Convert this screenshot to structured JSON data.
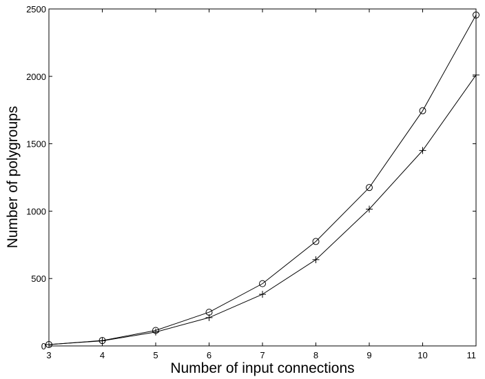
{
  "chart_data": {
    "type": "line",
    "title": "",
    "xlabel": "Number of input connections",
    "ylabel": "Number of polygroups",
    "x": [
      3,
      4,
      5,
      6,
      7,
      8,
      9,
      10,
      11
    ],
    "xlim": [
      3,
      11
    ],
    "ylim": [
      0,
      2500
    ],
    "xticks": [
      "3",
      "4",
      "5",
      "6",
      "7",
      "8",
      "9",
      "10",
      "11"
    ],
    "yticks": [
      "0",
      "500",
      "1000",
      "1500",
      "2000",
      "2500"
    ],
    "grid": false,
    "legend": "none",
    "series": [
      {
        "marker": "circle",
        "color": "#000000",
        "values": [
          10,
          40,
          115,
          250,
          462,
          775,
          1175,
          1745,
          2455
        ]
      },
      {
        "marker": "plus",
        "color": "#000000",
        "values": [
          10,
          38,
          103,
          210,
          383,
          640,
          1015,
          1450,
          2010
        ]
      }
    ]
  }
}
